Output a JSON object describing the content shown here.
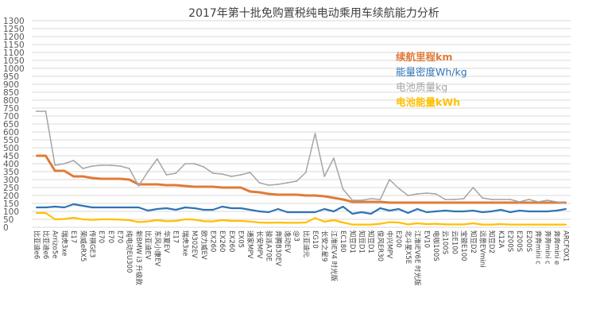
{
  "chart_data": {
    "type": "line",
    "title": "2017年第十批免购置税纯电动乘用车续航能力分析",
    "ylim": [
      0,
      1300
    ],
    "yticks": [
      0,
      50,
      100,
      150,
      200,
      250,
      300,
      350,
      400,
      450,
      500,
      550,
      600,
      650,
      700,
      750,
      800,
      850,
      900,
      950,
      1000,
      1050,
      1100,
      1150,
      1200,
      1250,
      1300
    ],
    "grid": true,
    "legend_position": "top-right",
    "categories": [
      "比亚迪e6",
      "比亚迪e6",
      "Arrizo5e",
      "瑞虎3xe",
      "E17",
      "荣威eRX5",
      "传祺GE3",
      "E70",
      "E70",
      "E70",
      "纯电动EU300",
      "新BMW i3 升级款",
      "比亚迪EV",
      "东风小康EV",
      "华夏EV",
      "E17",
      "瑞虎3xe",
      "M302EV",
      "欧力威EV",
      "EX260",
      "EX260",
      "EX260",
      "EX05",
      "通家MPV",
      "长安MPV",
      "骏派A70E",
      "奔腾B30EV",
      "逸动EV",
      "@3",
      "比亚迪元",
      "EG10",
      "长安之星9",
      "江淮iEV4 时光版",
      "EC180",
      "知豆D1",
      "知豆D1",
      "知豆D1",
      "俊风ER30",
      "中兴MPV",
      "E200",
      "北斗星X5E",
      "江淮iEV6E 时光版",
      "EV10",
      "电咖100S",
      "云100S",
      "云E100",
      "宝骏E100",
      "知豆D2",
      "远景EVmini",
      "知豆D2",
      "K12A",
      "E200S",
      "E200S",
      "E200S",
      "奔奔mini c",
      "奔奔mini c",
      "奔奔mini e",
      "ARCFOX1"
    ],
    "series": [
      {
        "name": "续航里程km",
        "color": "#E07B39",
        "values": [
          450,
          450,
          355,
          355,
          320,
          320,
          310,
          305,
          305,
          305,
          300,
          270,
          270,
          270,
          265,
          265,
          260,
          255,
          255,
          255,
          250,
          250,
          250,
          225,
          220,
          210,
          205,
          205,
          205,
          200,
          200,
          195,
          185,
          175,
          160,
          160,
          160,
          160,
          155,
          155,
          155,
          155,
          155,
          155,
          155,
          155,
          155,
          155,
          155,
          155,
          155,
          155,
          155,
          155,
          155,
          155,
          155,
          155
        ]
      },
      {
        "name": "能量密度Wh/kg",
        "color": "#2E74B5",
        "values": [
          125,
          125,
          130,
          125,
          145,
          135,
          125,
          125,
          125,
          125,
          125,
          125,
          105,
          115,
          120,
          110,
          125,
          120,
          110,
          110,
          130,
          120,
          120,
          110,
          100,
          95,
          115,
          95,
          95,
          95,
          95,
          115,
          100,
          130,
          85,
          95,
          85,
          120,
          105,
          115,
          90,
          115,
          95,
          100,
          105,
          100,
          100,
          105,
          95,
          100,
          110,
          95,
          105,
          100,
          100,
          100,
          105,
          115
        ]
      },
      {
        "name": "电池质量kg",
        "color": "#A5A5A5",
        "values": [
          730,
          730,
          390,
          400,
          420,
          370,
          385,
          390,
          390,
          385,
          370,
          260,
          350,
          430,
          330,
          340,
          400,
          400,
          380,
          340,
          335,
          320,
          330,
          345,
          280,
          265,
          270,
          280,
          290,
          345,
          590,
          320,
          435,
          240,
          170,
          170,
          180,
          175,
          300,
          245,
          200,
          210,
          215,
          210,
          175,
          175,
          180,
          250,
          185,
          175,
          175,
          175,
          160,
          175,
          160,
          170,
          160,
          150
        ]
      },
      {
        "name": "电池能量kWh",
        "color": "#FFC000",
        "values": [
          90,
          90,
          50,
          52,
          60,
          50,
          47,
          50,
          50,
          48,
          45,
          33,
          37,
          45,
          38,
          40,
          50,
          48,
          38,
          37,
          45,
          40,
          40,
          36,
          30,
          28,
          30,
          28,
          28,
          30,
          58,
          35,
          45,
          30,
          17,
          17,
          17,
          22,
          32,
          30,
          18,
          25,
          20,
          22,
          18,
          18,
          18,
          25,
          17,
          17,
          20,
          17,
          17,
          17,
          17,
          17,
          17,
          17
        ]
      }
    ]
  }
}
